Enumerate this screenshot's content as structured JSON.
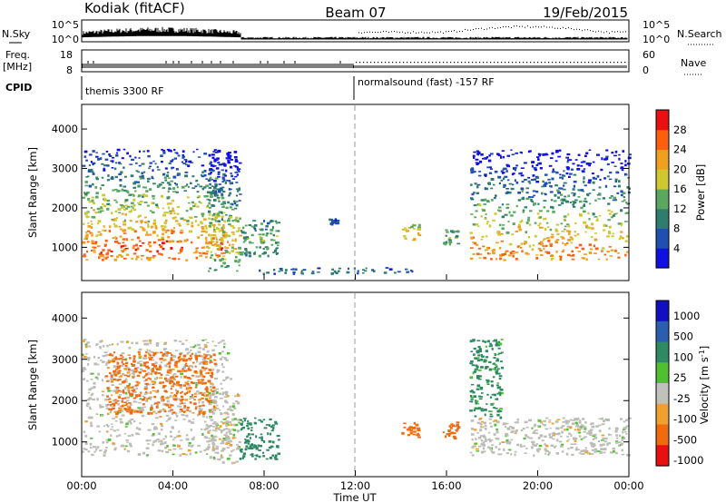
{
  "header": {
    "station": "Kodiak (fitACF)",
    "beam": "Beam 07",
    "date": "19/Feb/2015"
  },
  "top_panels": {
    "nsky_label": "N.Sky",
    "nsky_ticks": [
      "10^5",
      "10^0"
    ],
    "nsearch_label": "N.Search",
    "nsearch_ticks": [
      "10^5",
      "10^0"
    ],
    "freq_label_line1": "Freq.",
    "freq_label_line2": "[MHz]",
    "freq_ticks": [
      "18",
      "8"
    ],
    "nave_label": "Nave",
    "nave_ticks": [
      "60",
      "0"
    ],
    "cpid_label": "CPID",
    "cpid_segments": [
      {
        "label": "themis 3300 RF",
        "start_hour": 0
      },
      {
        "label": "normalsound (fast) -157 RF",
        "start_hour": 12
      }
    ]
  },
  "colors": {
    "power_scale": [
      "#1010e0",
      "#1f4fb0",
      "#2e7d6e",
      "#5aa860",
      "#d0c830",
      "#f0a020",
      "#ff6010",
      "#e81010"
    ],
    "velocity_scale": [
      "#1010c0",
      "#2a5fb0",
      "#2e8a62",
      "#50c030",
      "#c0c0bc",
      "#f0a030",
      "#f06a10",
      "#e81010"
    ],
    "scatter_gray": "#bdbdb8"
  },
  "chart_data": [
    {
      "type": "heatmap",
      "panel": "power",
      "xlabel": "",
      "ylabel": "Slant Range [km]",
      "xlim": [
        0,
        24
      ],
      "ylim": [
        180,
        4600
      ],
      "yticks": [
        "1000",
        "2000",
        "3000",
        "4000"
      ],
      "colorbar": {
        "label": "Power [dB]",
        "range": [
          0,
          32
        ],
        "ticks": [
          "4",
          "8",
          "12",
          "16",
          "20",
          "24",
          "28"
        ]
      },
      "echo_regions": [
        {
          "start_hour": 0.0,
          "end_hour": 6.2,
          "min_km": 700,
          "max_km": 3500,
          "peak_km": 1000,
          "level": 26
        },
        {
          "start_hour": 5.5,
          "end_hour": 6.9,
          "min_km": 400,
          "max_km": 3500,
          "peak_km": 1200,
          "level": 20
        },
        {
          "start_hour": 6.9,
          "end_hour": 8.6,
          "min_km": 800,
          "max_km": 1700,
          "peak_km": 1200,
          "level": 14
        },
        {
          "start_hour": 7.5,
          "end_hour": 14.5,
          "min_km": 350,
          "max_km": 500,
          "peak_km": 420,
          "level": 8
        },
        {
          "start_hour": 10.8,
          "end_hour": 11.2,
          "min_km": 1600,
          "max_km": 1750,
          "peak_km": 1650,
          "level": 8
        },
        {
          "start_hour": 14.0,
          "end_hour": 14.8,
          "min_km": 1200,
          "max_km": 1600,
          "peak_km": 1350,
          "level": 20
        },
        {
          "start_hour": 15.8,
          "end_hour": 16.5,
          "min_km": 1100,
          "max_km": 1500,
          "peak_km": 1300,
          "level": 14
        },
        {
          "start_hour": 17.0,
          "end_hour": 24.0,
          "min_km": 700,
          "max_km": 3500,
          "peak_km": 900,
          "level": 24
        }
      ]
    },
    {
      "type": "heatmap",
      "panel": "velocity",
      "xlabel": "Time UT",
      "ylabel": "Slant Range [km]",
      "xlim": [
        0,
        24
      ],
      "ylim": [
        180,
        4600
      ],
      "xticks": [
        "00:00",
        "04:00",
        "08:00",
        "12:00",
        "16:00",
        "20:00",
        "00:00"
      ],
      "yticks": [
        "1000",
        "2000",
        "3000",
        "4000"
      ],
      "colorbar": {
        "label": "Velocity [m s^-1]",
        "ticks": [
          "1000",
          "500",
          "100",
          "25",
          "-25",
          "-100",
          "-500",
          "-1000"
        ]
      },
      "echo_regions": [
        {
          "start_hour": 0.0,
          "end_hour": 6.5,
          "min_km": 700,
          "max_km": 3500,
          "velocity": 0
        },
        {
          "start_hour": 1.0,
          "end_hour": 5.8,
          "min_km": 1700,
          "max_km": 3200,
          "velocity": -120
        },
        {
          "start_hour": 5.5,
          "end_hour": 6.9,
          "min_km": 500,
          "max_km": 2200,
          "velocity": 0
        },
        {
          "start_hour": 6.9,
          "end_hour": 8.6,
          "min_km": 600,
          "max_km": 1600,
          "velocity": 150
        },
        {
          "start_hour": 14.0,
          "end_hour": 14.8,
          "min_km": 1100,
          "max_km": 1500,
          "velocity": -450
        },
        {
          "start_hour": 15.8,
          "end_hour": 16.5,
          "min_km": 1100,
          "max_km": 1500,
          "velocity": -450
        },
        {
          "start_hour": 17.0,
          "end_hour": 24.0,
          "min_km": 700,
          "max_km": 1600,
          "velocity": 0
        },
        {
          "start_hour": 17.0,
          "end_hour": 18.4,
          "min_km": 1600,
          "max_km": 3500,
          "velocity": 120
        }
      ]
    }
  ]
}
